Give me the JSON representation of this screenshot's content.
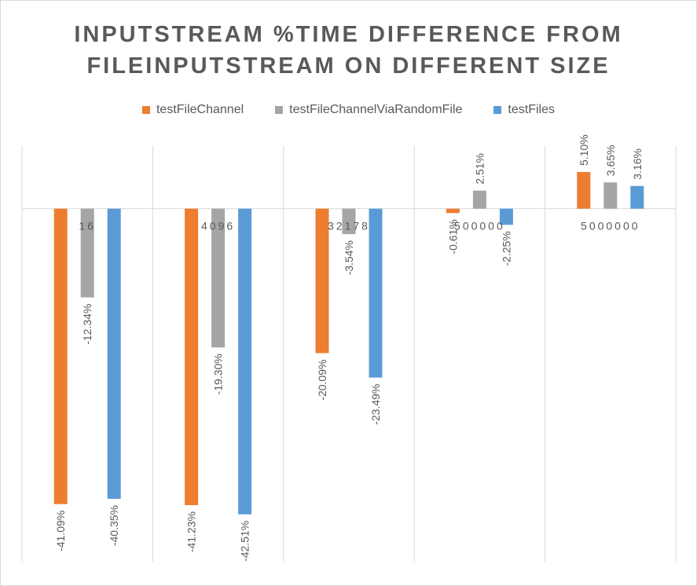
{
  "chart_data": {
    "type": "bar",
    "title_line1": "INPUTSTREAM %TIME DIFFERENCE FROM",
    "title_line2": "FILEINPUTSTREAM ON DIFFERENT SIZE",
    "categories": [
      "16",
      "4096",
      "32178",
      "500000",
      "5000000"
    ],
    "series": [
      {
        "name": "testFileChannel",
        "color": "#ED7D31",
        "values": [
          -41.09,
          -41.23,
          -20.09,
          -0.61,
          5.1
        ]
      },
      {
        "name": "testFileChannelViaRandomFile",
        "color": "#A5A5A5",
        "values": [
          -12.34,
          -19.3,
          -3.54,
          2.51,
          3.65
        ]
      },
      {
        "name": "testFiles",
        "color": "#5B9BD5",
        "values": [
          -40.35,
          -42.51,
          -23.49,
          -2.25,
          3.16
        ]
      }
    ],
    "value_labels": [
      [
        "-41.09%",
        "-41.23%",
        "-20.09%",
        "-0.61%",
        "5.10%"
      ],
      [
        "-12.34%",
        "-19.30%",
        "-3.54%",
        "2.51%",
        "3.65%"
      ],
      [
        "-40.35%",
        "-42.51%",
        "-23.49%",
        "-2.25%",
        "3.16%"
      ]
    ],
    "ylim": [
      -49.2,
      8.7
    ],
    "grid": "vertical category separators",
    "legend_position": "top"
  }
}
